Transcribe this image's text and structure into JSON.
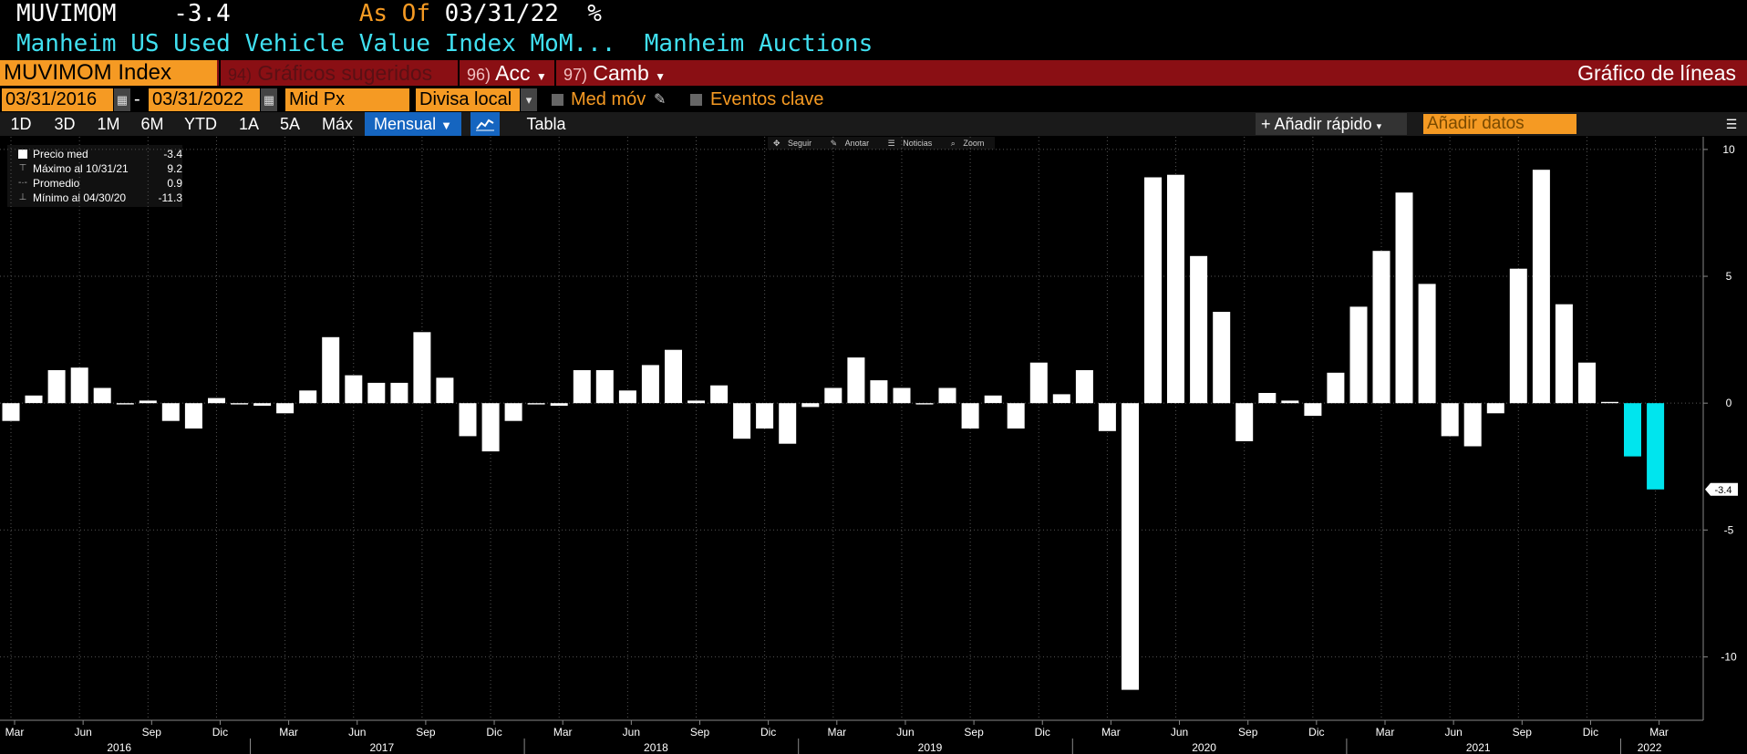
{
  "header": {
    "ticker_code": "MUVIMOM",
    "last_value": "-3.4",
    "as_of_label": "As Of",
    "as_of_date": "03/31/22",
    "unit": "%",
    "description": "Manheim US Used Vehicle Value Index MoM...",
    "source": "Manheim Auctions"
  },
  "toolbar": {
    "security": "MUVIMOM Index",
    "menu_94_num": "94)",
    "menu_94_label": "Gráficos sugeridos",
    "menu_96_num": "96)",
    "menu_96_label": "Acc",
    "menu_97_num": "97)",
    "menu_97_label": "Camb",
    "chart_type": "Gráfico de líneas"
  },
  "range": {
    "start": "03/31/2016",
    "dash": "-",
    "end": "03/31/2022",
    "field": "Mid Px",
    "currency": "Divisa local",
    "moving_avg": "Med móv",
    "key_events": "Eventos clave"
  },
  "periods": [
    "1D",
    "3D",
    "1M",
    "6M",
    "YTD",
    "1A",
    "5A",
    "Máx"
  ],
  "frequency": "Mensual",
  "table_label": "Tabla",
  "quick_add": "Añadir rápido",
  "add_data_placeholder": "Añadir datos",
  "chart_tools": [
    "Seguir",
    "Anotar",
    "Noticias",
    "Zoom"
  ],
  "legend": [
    {
      "name": "Precio med",
      "value": "-3.4"
    },
    {
      "name": "Máximo al 10/31/21",
      "value": "9.2"
    },
    {
      "name": "Promedio",
      "value": "0.9"
    },
    {
      "name": "Mínimo al 04/30/20",
      "value": "-11.3"
    }
  ],
  "colors": {
    "background": "#000000",
    "bar": "#ffffff",
    "bar_highlight": "#00e5ee",
    "orange": "#f59a23",
    "cyan": "#40e0f0",
    "header_red": "#8a0f14"
  },
  "chart_data": {
    "type": "bar",
    "title": "",
    "xlabel": "",
    "ylabel": "",
    "ylim": [
      -12.5,
      10.5
    ],
    "y_ticks": [
      10,
      5,
      0,
      -5,
      -10
    ],
    "y_tick_labels": [
      "10",
      "5",
      "0",
      "-5",
      "-10"
    ],
    "last_value_label": "-3.4",
    "grid": true,
    "start_month": "2016-03",
    "month_labels": [
      "Mar",
      "Jun",
      "Sep",
      "Dic",
      "Mar",
      "Jun",
      "Sep",
      "Dic",
      "Mar",
      "Jun",
      "Sep",
      "Dic",
      "Mar",
      "Jun",
      "Sep",
      "Dic",
      "Mar",
      "Jun",
      "Sep",
      "Dic",
      "Mar",
      "Jun",
      "Sep",
      "Dic",
      "Mar"
    ],
    "year_labels": [
      "2016",
      "2017",
      "2018",
      "2019",
      "2020",
      "2021",
      "2022"
    ],
    "highlight_last": 2,
    "series": [
      {
        "values": [
          -0.7,
          0.3,
          1.3,
          1.4,
          0.6,
          -0.05,
          0.1,
          -0.7,
          -1.0,
          0.2,
          -0.05,
          -0.1,
          -0.4,
          0.5,
          2.6,
          1.1,
          0.8,
          0.8,
          2.8,
          1.0,
          -1.3,
          -1.9,
          -0.7,
          -0.05,
          -0.1,
          1.3,
          1.3,
          0.5,
          1.5,
          2.1,
          0.1,
          0.7,
          -1.4,
          -1.0,
          -1.6,
          -0.15,
          0.6,
          1.8,
          0.9,
          0.6,
          -0.05,
          0.6,
          -1.0,
          0.3,
          -1.0,
          1.6,
          0.35,
          1.3,
          -1.1,
          -11.3,
          8.9,
          9.0,
          5.8,
          3.6,
          -1.5,
          0.4,
          0.1,
          -0.5,
          1.2,
          3.8,
          6.0,
          8.3,
          4.7,
          -1.3,
          -1.7,
          -0.4,
          5.3,
          9.2,
          3.9,
          1.6,
          0.05,
          -2.1,
          -3.4
        ]
      }
    ]
  }
}
